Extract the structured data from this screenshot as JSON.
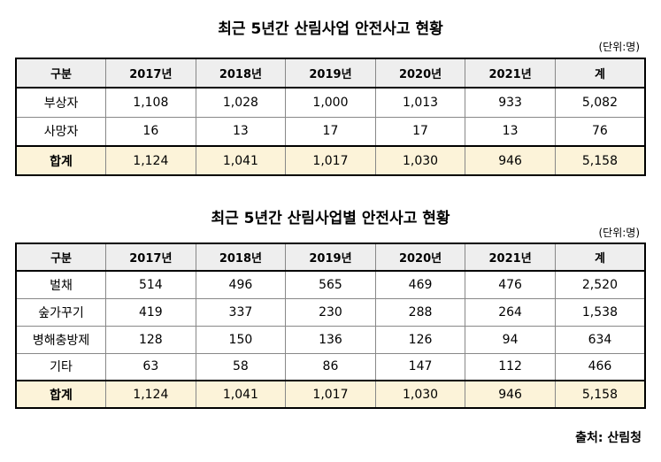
{
  "table1": {
    "title": "최근 5년간 산림사업 안전사고 현황",
    "unit": "(단위:명)",
    "headers": [
      "구분",
      "2017년",
      "2018년",
      "2019년",
      "2020년",
      "2021년",
      "계"
    ],
    "rows": [
      [
        "부상자",
        "1,108",
        "1,028",
        "1,000",
        "1,013",
        "933",
        "5,082"
      ],
      [
        "사망자",
        "16",
        "13",
        "17",
        "17",
        "13",
        "76"
      ]
    ],
    "total": [
      "합계",
      "1,124",
      "1,041",
      "1,017",
      "1,030",
      "946",
      "5,158"
    ]
  },
  "table2": {
    "title": "최근 5년간 산림사업별 안전사고 현황",
    "unit": "(단위:명)",
    "headers": [
      "구분",
      "2017년",
      "2018년",
      "2019년",
      "2020년",
      "2021년",
      "계"
    ],
    "rows": [
      [
        "벌채",
        "514",
        "496",
        "565",
        "469",
        "476",
        "2,520"
      ],
      [
        "숲가꾸기",
        "419",
        "337",
        "230",
        "288",
        "264",
        "1,538"
      ],
      [
        "병해충방제",
        "128",
        "150",
        "136",
        "126",
        "94",
        "634"
      ],
      [
        "기타",
        "63",
        "58",
        "86",
        "147",
        "112",
        "466"
      ]
    ],
    "total": [
      "합계",
      "1,124",
      "1,041",
      "1,017",
      "1,030",
      "946",
      "5,158"
    ]
  },
  "source": "출처: 산림청",
  "colors": {
    "header_bg": "#eeeeee",
    "total_bg": "#fcf3d9",
    "border": "#000000"
  }
}
